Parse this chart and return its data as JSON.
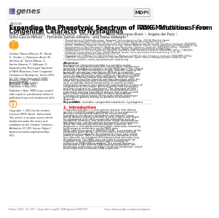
{
  "journal_name": "genes",
  "publisher": "MDPI",
  "article_label": "Article",
  "title_line1": "Expanding the Phenotypic Spectrum of ‘PAX6’ Mutations: From",
  "title_line2": "Congenital Cataracts to Nystagmus",
  "authors_line1": "Maria Nieves-Moreno ¹,*, Susana Noval ¹, Jesus Peralta ¹, Maria Palomares-Bralo ², Angela del Pozo ³,",
  "authors_line2": "Sixto-Garcia-Mihsur ¹, Fernando Santos-Simarro ⁴ and Elena Vallespin ⁵",
  "aff1": "¹ Department of Ophthalmology, Hospital Universitario La Paz, 28046 Madrid, Spain;",
  "aff1b": "  nieves.nev@hotmail.madrid.org (N.N.); jesus.peraltalot@salud.madrid.org (J.P.)",
  "aff2": "² Department of Molecular Developmental Disorders, Medical and Molecular Genetics Institute (INGEMM)",
  "aff2b": "  IdIPaz, CIBERER, Hospital Universitario La Paz, 28046 Madrid, Spain; maria.palomares@salud.madrid.org",
  "aff3": "³ Department of Bioinformatics, Medical and Molecular Genetics Institute (INGEMM) IdIPaz, CIBERER,",
  "aff3b": "  Hospital Universitario La Paz, 28046 Madrid, Spain; angela.pozo@salud.madrid.org",
  "aff4": "⁴ Department of Clinical Genetics, Medical and Molecular Genetics Institute (INGEMM) IdIPaz, CIBERER,",
  "aff4b": "  Hospital Universitario La Paz, 28046 Madrid, Spain; sixto.garcia@salud.madrid.org (S.G.-M.);",
  "aff4c": "  fernando.santos@salud.madrid.org (F.S.-S.)",
  "aff5": "⁵ Department of Molecular Ophthalmology, Medical and Molecular Genetics Institute (INGEMM) IdIPaz,",
  "aff5b": "  CIBERER, Hospital Universitario La Paz, 28046 Madrid, Spain; elena.vallespin@salud.madrid.org",
  "aff_corr": "* Correspondence: maria.niev@hotmail.madrid.org",
  "abstract_bold": "Abstract:",
  "abstract_body": " Background: Congenital aniridia is a complex ocular disorder, usually associated with severe visual impairment, generally caused by mutations on the PAX6 gene. The clinical phenotype of PAX6 mutations is highly variable, making the genotype-phenotype correlations difficult to establish. Methods: we describe the phenotype of eight patients from seven unrelated families with confirmed mutations in PAX6, and very different clinical manifestations. Results: Only two patients had the classical aniridia phenotype while the other two presented with aniridia-related manifestations, such as aniridia-related keratopathy or partial aniridia. Congenital cataracts were the main manifestation in three of the patients in this series. All the patients had nystagmus and low visual acuity. Conclusions: The diagnosis of mild forms of aniridia in challenging, but these patients have a potentially blinding hereditary disease that might present with a more severe phenotype in future generations. Clinicians should be aware of the mild aniridia phenotype and request genetic testing to perform an accurate diagnosis.",
  "keywords_bold": "Keywords:",
  "keywords_body": " PAX6; aniridia; congenital cataracts; nystagmus",
  "intro_heading": "1. Introduction",
  "intro_p1": "Congenital aniridia is a rare genetic disease that affects up to 1 in 64,000 people worldwide [1]. It is a pancocular disorder characterized typically by iris and foveal hypoplasia, resulting in nystagmus and reduced visual acuity. Aniridia usually presents in early infancy and might be associated with other congenital anomalies such as congenital cataracts, and later-onset ocular abnormalities like glaucoma, aniridia-related keratopathy and cataracts. When the classical aniridia phenotype is present, the diagnosis is straightforward and most commonly caused by heterozygous mutations on the PAX6 gene.",
  "intro_p2": "PAX6, paired box gene 6 (MIM#607108), is a member of the paired box gene family, which encodes a transcriptional regulator involved in the development of eye and central nervous tissues. PAX6 is required for the formation of the lens placode, an ectodermal thickening that precedes lens development. The PAX6 gene encodes a transcriptional regulator that recognises target genes through its paired-type DNA-binding domain. The paired domain is composed of two distinct DNA-binding subdomains, the N-terminal subdomain, and the C-terminal subdomain, which bind respective consensus DNA sequences.",
  "citation": "Citation: Nieves-Moreno, M.; Noval,\nS.; Peralta, J.; Palomares-Bralo, M.;\ndel Pozo, A.; Garcia-Mihsur, S.;\nSantos-Simarro, F.; Vallespin, E.\nExpanding the Phenotypic Spectrum\nof PAX6 Mutations: From Congenital\nCataracts to Nystagmus. Genes 2021,\n12, 707. https://doi.org/10.3390/\ngenes12050707",
  "academic_editor": "Academic Editor: Christina Zeitz",
  "received": "Received: 11 April 2021",
  "accepted": "Accepted: 5 May 2021",
  "published": "Published: 9 May 2021",
  "pub_note": "Publisher’s Note: MDPI stays neutral\nwith regard to jurisdictional claims in\npublished maps and institutional affil-\niations.",
  "copyright": "Copyright: © 2021 by the authors.\nLicensee MDPI, Basel, Switzerland.\nThis article is an open access article\ndistributed under the terms and\nconditions of the Creative Commons\nAttribution (CC BY) license (https://\ncreativecommons.org/licenses/by/\n4.0/).",
  "footer_left": "Genes 2021, 12, 707.  https://doi.org/10.3390/genes12050707",
  "footer_right": "https://www.mdpi.com/journal/genes",
  "col_split": 0.38,
  "bg": "#ffffff",
  "header_bg": "#f7f7f7",
  "border": "#cccccc",
  "text_dark": "#222222",
  "text_mid": "#444444",
  "text_light": "#666666",
  "red_section": "#cc0000",
  "logo_squares": [
    "#8b7ab0",
    "#6b5a96",
    "#9b8ac0",
    "#7b6aa6"
  ]
}
